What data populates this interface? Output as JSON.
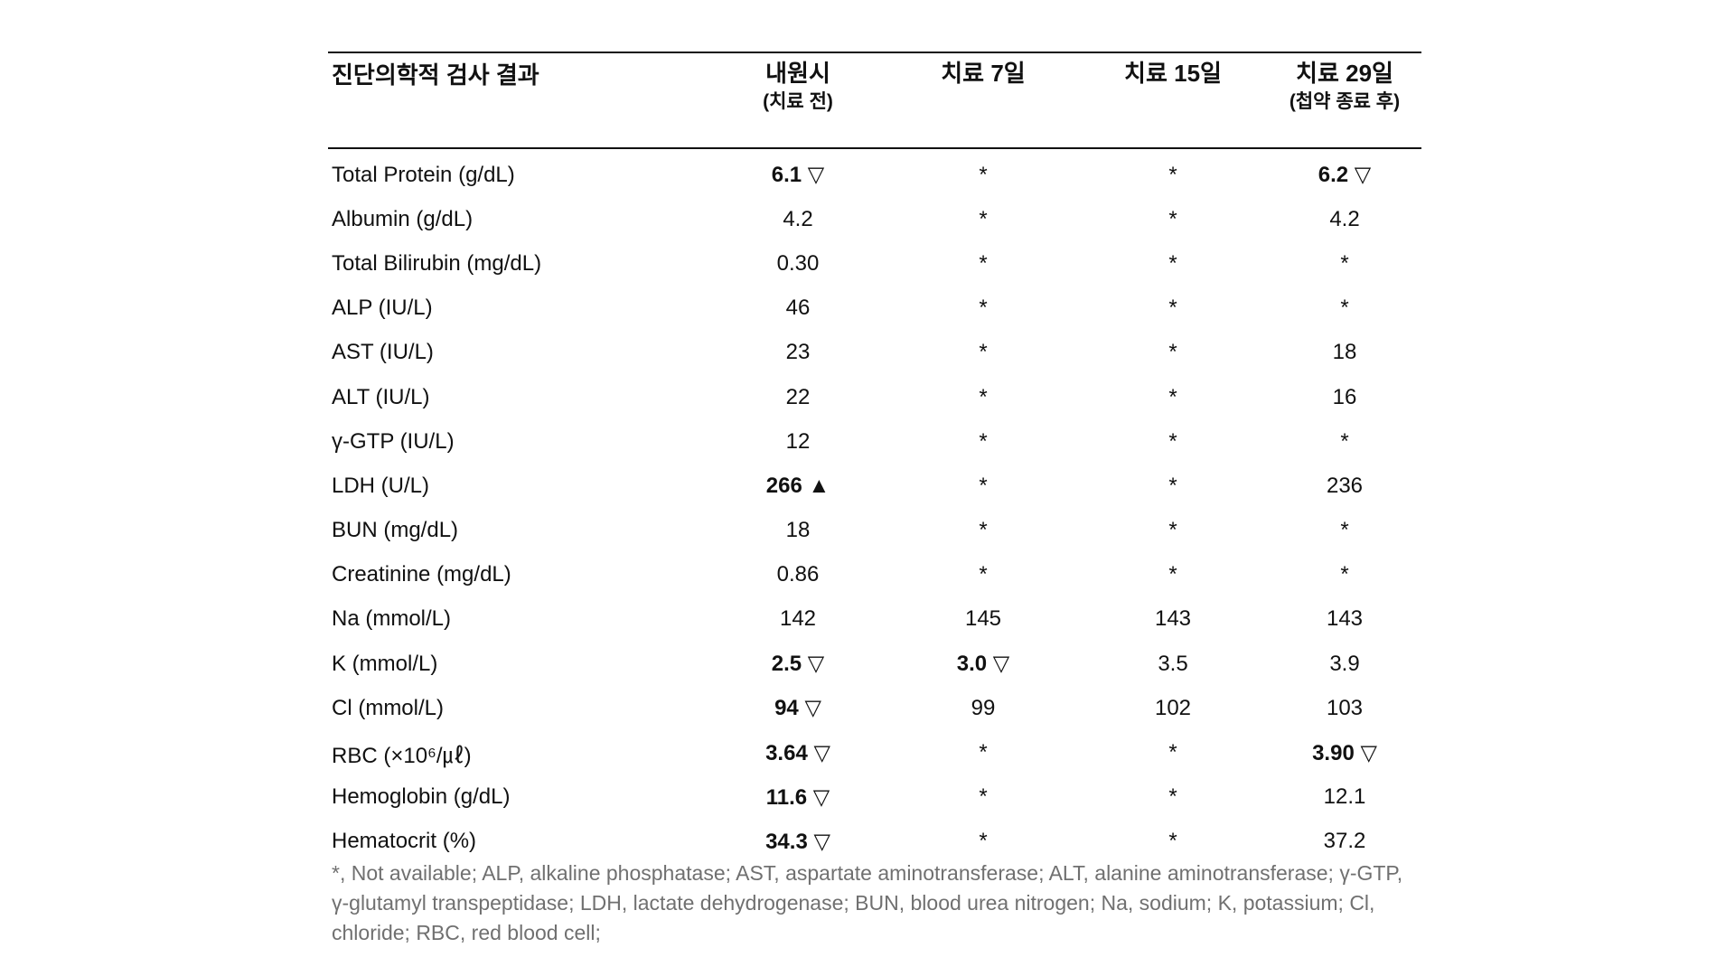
{
  "table": {
    "headers": [
      {
        "label": "진단의학적 검사 결과",
        "sub": ""
      },
      {
        "label": "내원시",
        "sub": "(치료 전)"
      },
      {
        "label": "치료 7일",
        "sub": ""
      },
      {
        "label": "치료 15일",
        "sub": ""
      },
      {
        "label": "치료 29일",
        "sub": "(첩약 종료 후)"
      }
    ],
    "rows": [
      {
        "name": "Total Protein (g/dL)",
        "cells": [
          {
            "v": "6.1 ▽",
            "b": true
          },
          {
            "v": "*",
            "b": false
          },
          {
            "v": "*",
            "b": false
          },
          {
            "v": "6.2 ▽",
            "b": true
          }
        ]
      },
      {
        "name": "Albumin (g/dL)",
        "cells": [
          {
            "v": "4.2",
            "b": false
          },
          {
            "v": "*",
            "b": false
          },
          {
            "v": "*",
            "b": false
          },
          {
            "v": "4.2",
            "b": false
          }
        ]
      },
      {
        "name": "Total Bilirubin (mg/dL)",
        "cells": [
          {
            "v": "0.30",
            "b": false
          },
          {
            "v": "*",
            "b": false
          },
          {
            "v": "*",
            "b": false
          },
          {
            "v": "*",
            "b": false
          }
        ]
      },
      {
        "name": "ALP (IU/L)",
        "cells": [
          {
            "v": "46",
            "b": false
          },
          {
            "v": "*",
            "b": false
          },
          {
            "v": "*",
            "b": false
          },
          {
            "v": "*",
            "b": false
          }
        ]
      },
      {
        "name": "AST (IU/L)",
        "cells": [
          {
            "v": "23",
            "b": false
          },
          {
            "v": "*",
            "b": false
          },
          {
            "v": "*",
            "b": false
          },
          {
            "v": "18",
            "b": false
          }
        ]
      },
      {
        "name": "ALT (IU/L)",
        "cells": [
          {
            "v": "22",
            "b": false
          },
          {
            "v": "*",
            "b": false
          },
          {
            "v": "*",
            "b": false
          },
          {
            "v": "16",
            "b": false
          }
        ]
      },
      {
        "name": "γ-GTP (IU/L)",
        "cells": [
          {
            "v": "12",
            "b": false
          },
          {
            "v": "*",
            "b": false
          },
          {
            "v": "*",
            "b": false
          },
          {
            "v": "*",
            "b": false
          }
        ]
      },
      {
        "name": "LDH (U/L)",
        "cells": [
          {
            "v": "266 ▲",
            "b": true
          },
          {
            "v": "*",
            "b": false
          },
          {
            "v": "*",
            "b": false
          },
          {
            "v": "236",
            "b": false
          }
        ]
      },
      {
        "name": "BUN (mg/dL)",
        "cells": [
          {
            "v": "18",
            "b": false
          },
          {
            "v": "*",
            "b": false
          },
          {
            "v": "*",
            "b": false
          },
          {
            "v": "*",
            "b": false
          }
        ]
      },
      {
        "name": "Creatinine (mg/dL)",
        "cells": [
          {
            "v": "0.86",
            "b": false
          },
          {
            "v": "*",
            "b": false
          },
          {
            "v": "*",
            "b": false
          },
          {
            "v": "*",
            "b": false
          }
        ]
      },
      {
        "name": "Na (mmol/L)",
        "cells": [
          {
            "v": "142",
            "b": false
          },
          {
            "v": "145",
            "b": false
          },
          {
            "v": "143",
            "b": false
          },
          {
            "v": "143",
            "b": false
          }
        ]
      },
      {
        "name": "K (mmol/L)",
        "cells": [
          {
            "v": "2.5 ▽",
            "b": true
          },
          {
            "v": "3.0 ▽",
            "b": true
          },
          {
            "v": "3.5",
            "b": false
          },
          {
            "v": "3.9",
            "b": false
          }
        ]
      },
      {
        "name": "Cl (mmol/L)",
        "cells": [
          {
            "v": "94 ▽",
            "b": true
          },
          {
            "v": "99",
            "b": false
          },
          {
            "v": "102",
            "b": false
          },
          {
            "v": "103",
            "b": false
          }
        ]
      },
      {
        "name": "RBC (×10⁶/㎕)",
        "cells": [
          {
            "v": "3.64 ▽",
            "b": true
          },
          {
            "v": "*",
            "b": false
          },
          {
            "v": "*",
            "b": false
          },
          {
            "v": "3.90 ▽",
            "b": true
          }
        ]
      },
      {
        "name": "Hemoglobin (g/dL)",
        "cells": [
          {
            "v": "11.6 ▽",
            "b": true
          },
          {
            "v": "*",
            "b": false
          },
          {
            "v": "*",
            "b": false
          },
          {
            "v": "12.1",
            "b": false
          }
        ]
      },
      {
        "name": "Hematocrit (%)",
        "cells": [
          {
            "v": "34.3 ▽",
            "b": true
          },
          {
            "v": "*",
            "b": false
          },
          {
            "v": "*",
            "b": false
          },
          {
            "v": "37.2",
            "b": false
          }
        ]
      }
    ]
  },
  "footnote": "*, Not available; ALP, alkaline phosphatase; AST, aspartate aminotransferase; ALT, alanine aminotransferase; γ-GTP, γ-glutamyl transpeptidase; LDH, lactate dehydrogenase; BUN, blood urea nitrogen; Na, sodium; K, potassium; Cl, chloride; RBC, red blood cell;"
}
